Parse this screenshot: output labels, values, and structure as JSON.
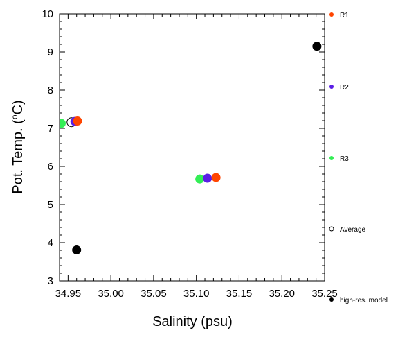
{
  "chart_data": {
    "type": "scatter",
    "title": "",
    "xlabel": "Salinity (psu)",
    "ylabel_main": "Pot. Temp. (",
    "ylabel_sup": "o",
    "ylabel_unit": "C)",
    "xlim": [
      34.94,
      35.25
    ],
    "ylim": [
      3,
      10
    ],
    "x_ticks": [
      "34.95",
      "35.00",
      "35.05",
      "35.10",
      "35.15",
      "35.20",
      "35.25"
    ],
    "y_ticks": [
      "3",
      "4",
      "5",
      "6",
      "7",
      "8",
      "9",
      "10"
    ],
    "series": [
      {
        "name": "R1",
        "color": "#ff4500",
        "points": [
          [
            34.961,
            7.19
          ],
          [
            35.123,
            5.71
          ]
        ]
      },
      {
        "name": "R2",
        "color": "#5a1ee6",
        "points": [
          [
            34.958,
            7.18
          ],
          [
            35.113,
            5.69
          ]
        ]
      },
      {
        "name": "R3",
        "color": "#33ee55",
        "points": [
          [
            34.942,
            7.13
          ],
          [
            35.104,
            5.67
          ]
        ]
      },
      {
        "name": "Average",
        "color": "#000000",
        "hollow": true,
        "points": [
          [
            34.954,
            7.16
          ]
        ]
      },
      {
        "name": "high-res. model",
        "color": "#000000",
        "points": [
          [
            34.96,
            3.81
          ],
          [
            35.241,
            9.15
          ]
        ]
      }
    ],
    "legend_position": "right"
  }
}
